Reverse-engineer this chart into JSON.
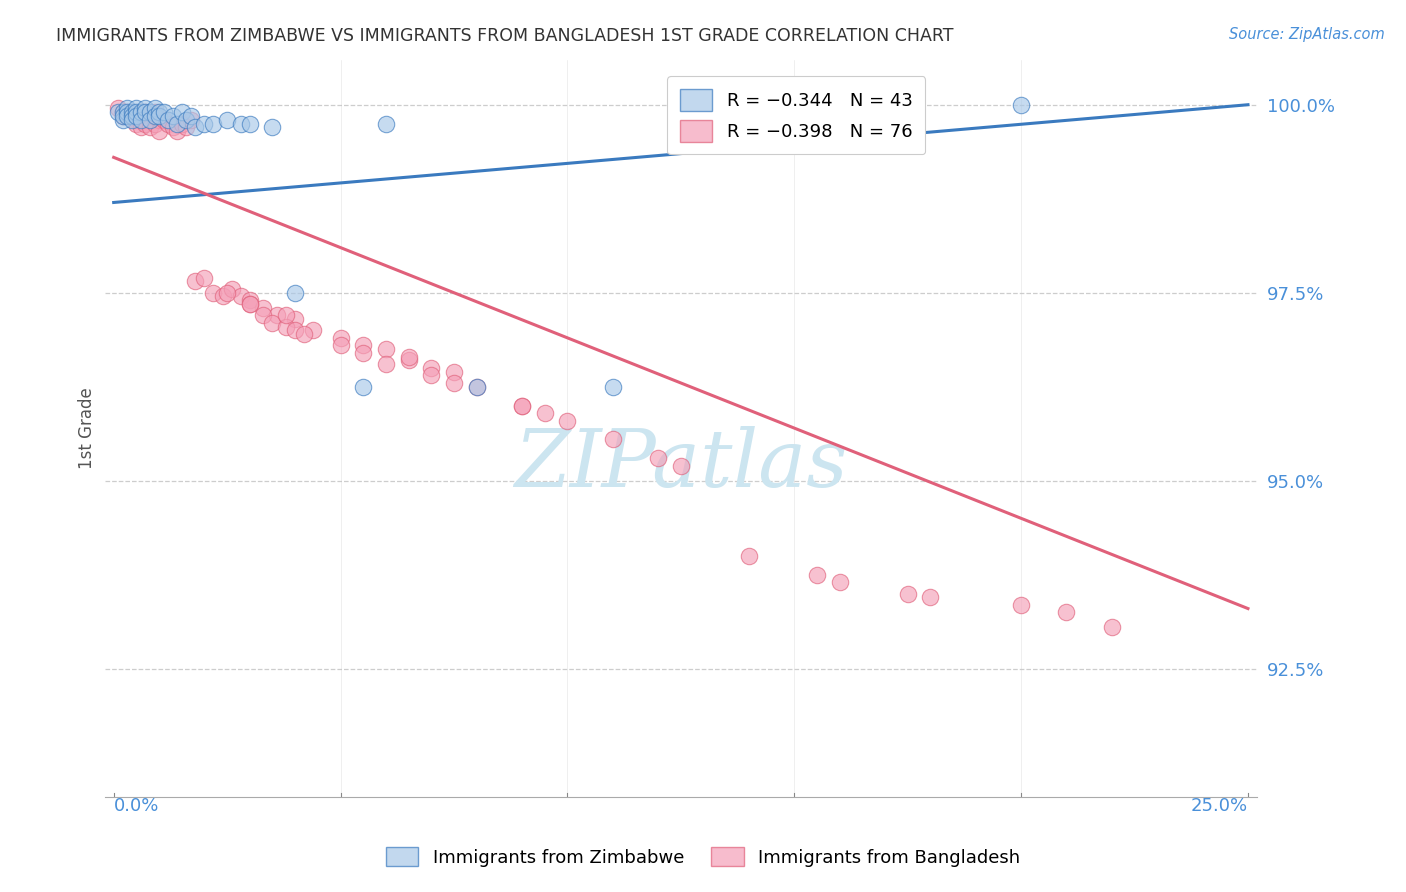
{
  "title": "IMMIGRANTS FROM ZIMBABWE VS IMMIGRANTS FROM BANGLADESH 1ST GRADE CORRELATION CHART",
  "source": "Source: ZipAtlas.com",
  "ylabel": "1st Grade",
  "ytick_labels": [
    "100.0%",
    "97.5%",
    "95.0%",
    "92.5%"
  ],
  "ytick_values": [
    1.0,
    0.975,
    0.95,
    0.925
  ],
  "xlim": [
    0.0,
    0.25
  ],
  "ylim": [
    0.908,
    1.006
  ],
  "blue_color": "#a8c8e8",
  "pink_color": "#f4a0b8",
  "blue_line_color": "#3a7abf",
  "pink_line_color": "#e0607a",
  "background_color": "#ffffff",
  "grid_color": "#c8c8c8",
  "title_color": "#333333",
  "axis_label_color": "#4a90d9",
  "watermark_color": "#cce5f0",
  "legend_r_blue": "R =−0.344",
  "legend_n_blue": "N = 43",
  "legend_r_pink": "R = −0.398",
  "legend_n_pink": "N = 76",
  "zim_line_x0": 0.0,
  "zim_line_y0": 0.987,
  "zim_line_x1": 0.25,
  "zim_line_y1": 1.0,
  "bang_line_x0": 0.0,
  "bang_line_y0": 0.993,
  "bang_line_x1": 0.25,
  "bang_line_y1": 0.933,
  "zim_x": [
    0.001,
    0.002,
    0.002,
    0.002,
    0.003,
    0.003,
    0.003,
    0.004,
    0.004,
    0.004,
    0.005,
    0.005,
    0.005,
    0.006,
    0.006,
    0.007,
    0.007,
    0.008,
    0.008,
    0.009,
    0.009,
    0.01,
    0.01,
    0.011,
    0.012,
    0.013,
    0.014,
    0.015,
    0.016,
    0.017,
    0.018,
    0.02,
    0.022,
    0.025,
    0.028,
    0.03,
    0.035,
    0.04,
    0.055,
    0.06,
    0.08,
    0.11,
    0.2
  ],
  "zim_y": [
    0.999,
    0.999,
    0.998,
    0.9985,
    0.9995,
    0.999,
    0.9985,
    0.999,
    0.9985,
    0.998,
    0.9995,
    0.999,
    0.9985,
    0.999,
    0.998,
    0.9995,
    0.999,
    0.999,
    0.998,
    0.9995,
    0.9985,
    0.999,
    0.9985,
    0.999,
    0.998,
    0.9985,
    0.9975,
    0.999,
    0.998,
    0.9985,
    0.997,
    0.9975,
    0.9975,
    0.998,
    0.9975,
    0.9975,
    0.997,
    0.975,
    0.9625,
    0.9975,
    0.9625,
    0.9625,
    1.0
  ],
  "bang_x": [
    0.001,
    0.002,
    0.002,
    0.003,
    0.003,
    0.004,
    0.004,
    0.005,
    0.005,
    0.006,
    0.006,
    0.006,
    0.007,
    0.007,
    0.007,
    0.008,
    0.008,
    0.009,
    0.009,
    0.01,
    0.01,
    0.011,
    0.012,
    0.013,
    0.014,
    0.015,
    0.016,
    0.017,
    0.018,
    0.02,
    0.022,
    0.024,
    0.026,
    0.028,
    0.03,
    0.033,
    0.036,
    0.04,
    0.044,
    0.05,
    0.055,
    0.06,
    0.065,
    0.07,
    0.075,
    0.08,
    0.09,
    0.1,
    0.11,
    0.12,
    0.025,
    0.03,
    0.033,
    0.035,
    0.038,
    0.055,
    0.06,
    0.075,
    0.095,
    0.125,
    0.04,
    0.05,
    0.07,
    0.09,
    0.2,
    0.21,
    0.175,
    0.155,
    0.18,
    0.22,
    0.16,
    0.14,
    0.065,
    0.038,
    0.03,
    0.042
  ],
  "bang_y": [
    0.9995,
    0.999,
    0.9985,
    0.999,
    0.9985,
    0.999,
    0.9985,
    0.998,
    0.9975,
    0.999,
    0.9985,
    0.997,
    0.999,
    0.998,
    0.9975,
    0.9985,
    0.997,
    0.999,
    0.9975,
    0.998,
    0.9965,
    0.998,
    0.9975,
    0.997,
    0.9965,
    0.9975,
    0.997,
    0.998,
    0.9765,
    0.977,
    0.975,
    0.9745,
    0.9755,
    0.9745,
    0.974,
    0.973,
    0.972,
    0.9715,
    0.97,
    0.969,
    0.968,
    0.9675,
    0.966,
    0.965,
    0.9645,
    0.9625,
    0.96,
    0.958,
    0.9555,
    0.953,
    0.975,
    0.9735,
    0.972,
    0.971,
    0.9705,
    0.967,
    0.9655,
    0.963,
    0.959,
    0.952,
    0.97,
    0.968,
    0.964,
    0.96,
    0.9335,
    0.9325,
    0.935,
    0.9375,
    0.9345,
    0.9305,
    0.9365,
    0.94,
    0.9665,
    0.972,
    0.9735,
    0.9695
  ]
}
